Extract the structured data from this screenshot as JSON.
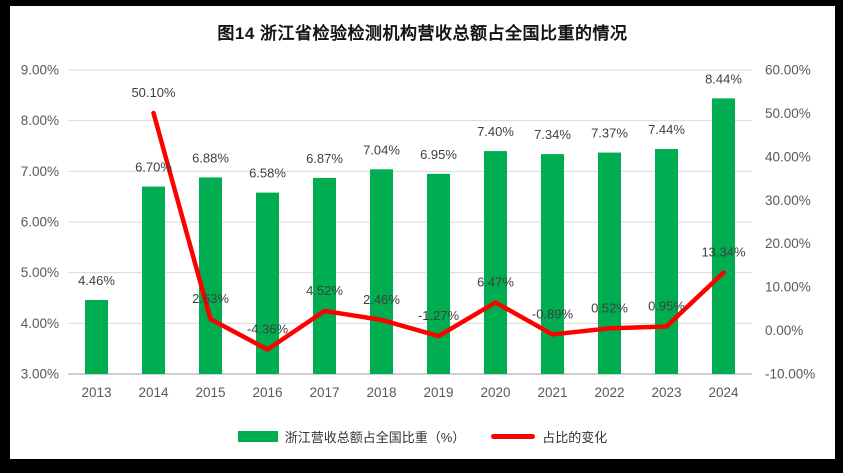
{
  "title": "图14  浙江省检验检测机构营收总额占全国比重的情况",
  "colors": {
    "bar": "#00AD50",
    "line": "#FF0000",
    "grid": "#D9D9D9",
    "axis_line": "#CFCFCF",
    "tick_text": "#595959",
    "label_text": "#3F3F3F",
    "title_text": "#141414",
    "background": "#FFFFFF",
    "frame": "#000000"
  },
  "legend": {
    "bar_label": "浙江营收总额占全国比重（%）",
    "line_label": "占比的变化"
  },
  "chart_data": {
    "type": "bar",
    "subtype": "combo-bar-line-dual-axis",
    "title": "图14  浙江省检验检测机构营收总额占全国比重的情况",
    "categories": [
      "2013",
      "2014",
      "2015",
      "2016",
      "2017",
      "2018",
      "2019",
      "2020",
      "2021",
      "2022",
      "2023",
      "2024"
    ],
    "series": [
      {
        "name": "浙江营收总额占全国比重（%）",
        "type": "bar",
        "axis": "left",
        "color": "#00AD50",
        "values": [
          4.46,
          6.7,
          6.88,
          6.58,
          6.87,
          7.04,
          6.95,
          7.4,
          7.34,
          7.37,
          7.44,
          8.44
        ],
        "labels": [
          "4.46%",
          "6.70%",
          "6.88%",
          "6.58%",
          "6.87%",
          "7.04%",
          "6.95%",
          "7.40%",
          "7.34%",
          "7.37%",
          "7.44%",
          "8.44%"
        ]
      },
      {
        "name": "占比的变化",
        "type": "line",
        "axis": "right",
        "color": "#FF0000",
        "values": [
          null,
          50.1,
          2.63,
          -4.36,
          4.52,
          2.46,
          -1.27,
          6.47,
          -0.89,
          0.52,
          0.95,
          13.34
        ],
        "labels": [
          "",
          "50.10%",
          "2.63%",
          "-4.36%",
          "4.52%",
          "2.46%",
          "-1.27%",
          "6.47%",
          "-0.89%",
          "0.52%",
          "0.95%",
          "13.34%"
        ]
      }
    ],
    "left_axis": {
      "min": 3,
      "max": 9,
      "step": 1,
      "tick_labels": [
        "3.00%",
        "4.00%",
        "5.00%",
        "6.00%",
        "7.00%",
        "8.00%",
        "9.00%"
      ]
    },
    "right_axis": {
      "min": -10,
      "max": 60,
      "step": 10,
      "tick_labels": [
        "-10.00%",
        "0.00%",
        "10.00%",
        "20.00%",
        "30.00%",
        "40.00%",
        "50.00%",
        "60.00%"
      ]
    },
    "grid": true,
    "legend_position": "bottom",
    "xlabel": "",
    "ylabel_left": "",
    "ylabel_right": ""
  }
}
